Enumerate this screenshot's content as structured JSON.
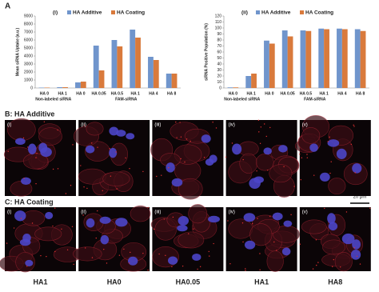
{
  "panel_a": "A",
  "chart_data": [
    {
      "type": "bar",
      "title": "(i)",
      "ylabel": "Mean siRNA Uptake (a.u.)",
      "categories": [
        "HA 0",
        "HA 1",
        "HA 0",
        "HA 0.05",
        "HA 0.5",
        "HA 1",
        "HA 4",
        "HA 8"
      ],
      "groups": [
        {
          "label": "Non-labeled siRNA",
          "count": 2
        },
        {
          "label": "FAM-siRNA",
          "count": 6
        }
      ],
      "series": [
        {
          "name": "HA Additive",
          "color": "#7095cc",
          "values": [
            50,
            100,
            700,
            5300,
            6000,
            7300,
            3900,
            1800
          ]
        },
        {
          "name": "HA Coating",
          "color": "#d97a3c",
          "values": [
            50,
            100,
            800,
            2200,
            5200,
            6300,
            3500,
            1800
          ]
        }
      ],
      "ylim": [
        0,
        9000
      ],
      "yticks": [
        0,
        1000,
        2000,
        3000,
        4000,
        5000,
        6000,
        7000,
        8000,
        9000
      ]
    },
    {
      "type": "bar",
      "title": "(ii)",
      "ylabel": "siRNA Positive Population (%)",
      "categories": [
        "HA 0",
        "HA 1",
        "HA 0",
        "HA 0.05",
        "HA 0.5",
        "HA 1",
        "HA 4",
        "HA 8"
      ],
      "groups": [
        {
          "label": "Non-labeled siRNA",
          "count": 2
        },
        {
          "label": "FAM-siRNA",
          "count": 6
        }
      ],
      "series": [
        {
          "name": "HA Additive",
          "color": "#7095cc",
          "values": [
            1,
            20,
            79,
            96,
            96,
            99,
            99,
            98
          ]
        },
        {
          "name": "HA Coating",
          "color": "#d97a3c",
          "values": [
            1,
            24,
            74,
            86,
            95,
            98,
            98,
            95
          ]
        }
      ],
      "ylim": [
        0,
        120
      ],
      "yticks": [
        0,
        10,
        20,
        30,
        40,
        50,
        60,
        70,
        80,
        90,
        100,
        110,
        120
      ]
    }
  ],
  "panel_b": {
    "title": "B: HA Additive",
    "images": [
      "(i)",
      "(ii)",
      "(iii)",
      "(iv)",
      "(v)"
    ]
  },
  "panel_c": {
    "title": "C: HA Coating",
    "scale_bar": "20 μm",
    "images": [
      "(i)",
      "(ii)",
      "(iii)",
      "(iv)",
      "(v)"
    ]
  },
  "bottom_labels": [
    "HA1",
    "HA0",
    "HA0.05",
    "HA1",
    "HA8"
  ]
}
